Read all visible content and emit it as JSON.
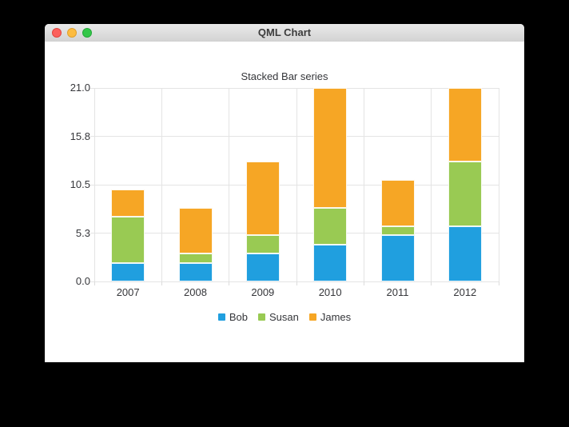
{
  "window": {
    "title": "QML Chart",
    "buttons": [
      {
        "name": "close",
        "color": "#fc615d",
        "border": "#e1463e"
      },
      {
        "name": "minimize",
        "color": "#fdbc40",
        "border": "#e0a02c"
      },
      {
        "name": "zoom",
        "color": "#34c749",
        "border": "#25a83a"
      }
    ]
  },
  "chart_data": {
    "type": "bar",
    "variant": "stacked",
    "title": "Stacked Bar series",
    "categories": [
      "2007",
      "2008",
      "2009",
      "2010",
      "2011",
      "2012"
    ],
    "series": [
      {
        "name": "Bob",
        "color": "#209fdf",
        "values": [
          2,
          2,
          3,
          4,
          5,
          6
        ]
      },
      {
        "name": "Susan",
        "color": "#99ca53",
        "values": [
          5,
          1,
          2,
          4,
          1,
          7
        ]
      },
      {
        "name": "James",
        "color": "#f6a625",
        "values": [
          3,
          5,
          8,
          13,
          5,
          8
        ]
      }
    ],
    "stacked_totals": [
      10,
      8,
      13,
      21,
      11,
      21
    ],
    "ylim": [
      0,
      21
    ],
    "y_ticks": [
      {
        "label": "21.0",
        "value": 21
      },
      {
        "label": "15.8",
        "value": 15.75
      },
      {
        "label": "10.5",
        "value": 10.5
      },
      {
        "label": "5.3",
        "value": 5.25
      },
      {
        "label": "0.0",
        "value": 0
      }
    ],
    "grid": true,
    "legend_position": "bottom",
    "legend": [
      "Bob",
      "Susan",
      "James"
    ],
    "colors": {
      "grid": "#e4e4e4",
      "label_text": "#35363a",
      "plot_background": "#ffffff"
    }
  }
}
